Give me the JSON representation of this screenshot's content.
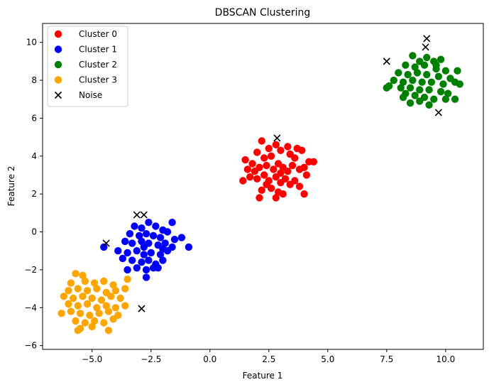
{
  "chart_data": {
    "type": "scatter",
    "title": "DBSCAN Clustering",
    "xlabel": "Feature 1",
    "ylabel": "Feature 2",
    "xlim": [
      -7.1,
      11.6
    ],
    "ylim": [
      -6.2,
      11.0
    ],
    "xticks": [
      -5.0,
      -2.5,
      0.0,
      2.5,
      5.0,
      7.5,
      10.0
    ],
    "xtick_labels": [
      "−5.0",
      "−2.5",
      "0.0",
      "2.5",
      "5.0",
      "7.5",
      "10.0"
    ],
    "yticks": [
      -6,
      -4,
      -2,
      0,
      2,
      4,
      6,
      8,
      10
    ],
    "ytick_labels": [
      "−6",
      "−4",
      "−2",
      "0",
      "2",
      "4",
      "6",
      "8",
      "10"
    ],
    "grid": false,
    "legend_position": "top-left",
    "clusters": [
      {
        "name": "Cluster 0",
        "color": "#ff0000",
        "marker": "circle",
        "points": [
          [
            2.2,
            4.8
          ],
          [
            2.8,
            4.6
          ],
          [
            3.3,
            4.5
          ],
          [
            3.7,
            4.4
          ],
          [
            3.9,
            4.3
          ],
          [
            2.5,
            4.4
          ],
          [
            3.0,
            4.3
          ],
          [
            2.0,
            4.2
          ],
          [
            1.5,
            3.8
          ],
          [
            1.8,
            3.6
          ],
          [
            2.3,
            3.9
          ],
          [
            2.6,
            4.0
          ],
          [
            3.4,
            4.1
          ],
          [
            3.6,
            3.9
          ],
          [
            4.2,
            3.7
          ],
          [
            4.4,
            3.7
          ],
          [
            1.6,
            3.3
          ],
          [
            1.9,
            3.2
          ],
          [
            2.1,
            3.4
          ],
          [
            2.4,
            3.5
          ],
          [
            2.7,
            3.3
          ],
          [
            2.9,
            3.6
          ],
          [
            3.1,
            3.4
          ],
          [
            3.3,
            3.2
          ],
          [
            3.5,
            3.5
          ],
          [
            3.8,
            3.3
          ],
          [
            4.0,
            3.4
          ],
          [
            4.1,
            3.0
          ],
          [
            1.4,
            2.7
          ],
          [
            1.7,
            2.9
          ],
          [
            2.0,
            2.8
          ],
          [
            2.3,
            3.0
          ],
          [
            2.5,
            2.7
          ],
          [
            2.8,
            2.9
          ],
          [
            3.0,
            2.6
          ],
          [
            3.2,
            2.8
          ],
          [
            3.4,
            2.5
          ],
          [
            3.6,
            2.7
          ],
          [
            3.8,
            2.4
          ],
          [
            4.0,
            2.0
          ],
          [
            2.2,
            2.2
          ],
          [
            2.6,
            2.3
          ],
          [
            2.9,
            2.1
          ],
          [
            2.1,
            1.8
          ],
          [
            2.8,
            1.8
          ],
          [
            3.1,
            2.0
          ],
          [
            2.4,
            2.5
          ],
          [
            3.0,
            3.1
          ]
        ]
      },
      {
        "name": "Cluster 1",
        "color": "#0000ff",
        "marker": "circle",
        "points": [
          [
            -2.6,
            0.5
          ],
          [
            -1.6,
            0.5
          ],
          [
            -3.2,
            0.3
          ],
          [
            -2.9,
            0.2
          ],
          [
            -2.3,
            0.3
          ],
          [
            -2.0,
            0.1
          ],
          [
            -1.8,
            0.0
          ],
          [
            -3.4,
            -0.1
          ],
          [
            -3.0,
            -0.2
          ],
          [
            -2.7,
            -0.1
          ],
          [
            -2.4,
            -0.2
          ],
          [
            -2.1,
            -0.3
          ],
          [
            -1.5,
            -0.4
          ],
          [
            -1.2,
            -0.3
          ],
          [
            -3.6,
            -0.5
          ],
          [
            -3.3,
            -0.6
          ],
          [
            -2.9,
            -0.5
          ],
          [
            -2.6,
            -0.6
          ],
          [
            -2.2,
            -0.7
          ],
          [
            -1.9,
            -0.6
          ],
          [
            -1.6,
            -0.8
          ],
          [
            -0.9,
            -0.8
          ],
          [
            -4.5,
            -0.8
          ],
          [
            -3.9,
            -1.0
          ],
          [
            -3.5,
            -1.1
          ],
          [
            -3.1,
            -1.0
          ],
          [
            -2.8,
            -1.2
          ],
          [
            -2.5,
            -1.1
          ],
          [
            -2.1,
            -1.2
          ],
          [
            -1.8,
            -1.0
          ],
          [
            -3.7,
            -1.4
          ],
          [
            -3.3,
            -1.5
          ],
          [
            -2.9,
            -1.6
          ],
          [
            -2.6,
            -1.5
          ],
          [
            -2.3,
            -1.7
          ],
          [
            -2.0,
            -1.5
          ],
          [
            -3.5,
            -2.0
          ],
          [
            -3.1,
            -1.9
          ],
          [
            -2.7,
            -2.0
          ],
          [
            -2.4,
            -1.9
          ],
          [
            -2.2,
            -1.9
          ],
          [
            -2.7,
            -2.4
          ],
          [
            -2.0,
            -0.9
          ],
          [
            -2.8,
            -0.8
          ]
        ]
      },
      {
        "name": "Cluster 2",
        "color": "#008000",
        "marker": "circle",
        "points": [
          [
            8.6,
            9.3
          ],
          [
            9.2,
            9.2
          ],
          [
            9.8,
            9.1
          ],
          [
            8.9,
            9.0
          ],
          [
            9.5,
            9.0
          ],
          [
            8.3,
            8.8
          ],
          [
            8.7,
            8.7
          ],
          [
            9.1,
            8.8
          ],
          [
            9.6,
            8.6
          ],
          [
            10.0,
            8.5
          ],
          [
            10.5,
            8.5
          ],
          [
            8.0,
            8.4
          ],
          [
            8.4,
            8.3
          ],
          [
            8.8,
            8.4
          ],
          [
            9.2,
            8.3
          ],
          [
            9.7,
            8.2
          ],
          [
            10.2,
            8.1
          ],
          [
            7.8,
            8.0
          ],
          [
            8.2,
            7.9
          ],
          [
            8.6,
            8.0
          ],
          [
            9.0,
            7.9
          ],
          [
            9.4,
            7.9
          ],
          [
            9.9,
            7.8
          ],
          [
            10.4,
            7.9
          ],
          [
            7.6,
            7.7
          ],
          [
            8.1,
            7.6
          ],
          [
            8.5,
            7.6
          ],
          [
            8.9,
            7.5
          ],
          [
            9.3,
            7.5
          ],
          [
            9.8,
            7.4
          ],
          [
            10.6,
            7.8
          ],
          [
            7.5,
            7.6
          ],
          [
            8.3,
            7.3
          ],
          [
            8.7,
            7.2
          ],
          [
            9.1,
            7.1
          ],
          [
            9.5,
            7.0
          ],
          [
            10.1,
            7.3
          ],
          [
            8.5,
            6.8
          ],
          [
            8.9,
            6.9
          ],
          [
            9.3,
            6.7
          ],
          [
            10.0,
            7.0
          ],
          [
            10.4,
            7.0
          ],
          [
            8.2,
            7.1
          ],
          [
            9.6,
            8.8
          ]
        ]
      },
      {
        "name": "Cluster 3",
        "color": "#ffa500",
        "marker": "circle",
        "points": [
          [
            -5.7,
            -2.2
          ],
          [
            -5.4,
            -2.3
          ],
          [
            -3.5,
            -2.5
          ],
          [
            -5.9,
            -2.7
          ],
          [
            -5.3,
            -2.6
          ],
          [
            -4.9,
            -2.7
          ],
          [
            -4.5,
            -2.6
          ],
          [
            -4.1,
            -2.8
          ],
          [
            -6.0,
            -3.1
          ],
          [
            -5.6,
            -3.0
          ],
          [
            -5.2,
            -3.1
          ],
          [
            -4.8,
            -3.0
          ],
          [
            -4.4,
            -3.2
          ],
          [
            -4.0,
            -3.1
          ],
          [
            -3.6,
            -3.0
          ],
          [
            -6.2,
            -3.4
          ],
          [
            -5.8,
            -3.5
          ],
          [
            -5.4,
            -3.4
          ],
          [
            -5.0,
            -3.5
          ],
          [
            -4.6,
            -3.6
          ],
          [
            -4.2,
            -3.4
          ],
          [
            -3.8,
            -3.5
          ],
          [
            -6.0,
            -3.8
          ],
          [
            -5.6,
            -3.9
          ],
          [
            -5.2,
            -3.8
          ],
          [
            -4.8,
            -4.0
          ],
          [
            -4.4,
            -3.9
          ],
          [
            -4.0,
            -4.0
          ],
          [
            -3.6,
            -3.9
          ],
          [
            -6.3,
            -4.3
          ],
          [
            -5.9,
            -4.2
          ],
          [
            -5.5,
            -4.3
          ],
          [
            -5.1,
            -4.4
          ],
          [
            -4.7,
            -4.3
          ],
          [
            -4.3,
            -4.2
          ],
          [
            -3.9,
            -4.4
          ],
          [
            -5.7,
            -4.7
          ],
          [
            -5.3,
            -4.8
          ],
          [
            -4.9,
            -4.7
          ],
          [
            -4.5,
            -4.8
          ],
          [
            -4.1,
            -4.6
          ],
          [
            -5.5,
            -5.1
          ],
          [
            -5.0,
            -5.0
          ],
          [
            -4.3,
            -5.2
          ],
          [
            -5.6,
            -5.2
          ]
        ]
      }
    ],
    "noise": {
      "name": "Noise",
      "color": "#000000",
      "marker": "x",
      "points": [
        [
          9.2,
          10.2
        ],
        [
          9.15,
          9.75
        ],
        [
          7.5,
          9.0
        ],
        [
          9.7,
          6.3
        ],
        [
          2.85,
          4.95
        ],
        [
          -3.1,
          0.9
        ],
        [
          -2.8,
          0.9
        ],
        [
          -4.4,
          -0.6
        ],
        [
          -2.9,
          -4.05
        ]
      ]
    }
  }
}
